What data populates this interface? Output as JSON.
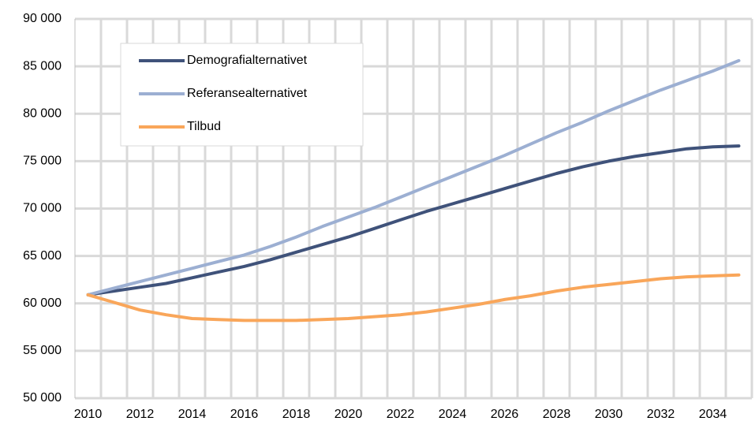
{
  "chart_data": {
    "type": "line",
    "categories": [
      "2010",
      null,
      "2012",
      null,
      "2014",
      null,
      "2016",
      null,
      "2018",
      null,
      "2020",
      null,
      "2022",
      null,
      "2024",
      null,
      "2026",
      null,
      "2028",
      null,
      "2030",
      null,
      "2032",
      null,
      "2034",
      null
    ],
    "series": [
      {
        "name": "Demografialternativet",
        "color": "#3f527a",
        "values": [
          60900,
          61300,
          61700,
          62100,
          62700,
          63300,
          63900,
          64600,
          65400,
          66200,
          67000,
          67900,
          68800,
          69700,
          70500,
          71300,
          72100,
          72900,
          73700,
          74400,
          75000,
          75500,
          75900,
          76300,
          76500,
          76600
        ]
      },
      {
        "name": "Referansealternativet",
        "color": "#9cafd2",
        "values": [
          60900,
          61600,
          62300,
          63000,
          63700,
          64400,
          65100,
          66000,
          67000,
          68100,
          69100,
          70100,
          71200,
          72300,
          73400,
          74500,
          75600,
          76800,
          78000,
          79100,
          80300,
          81400,
          82500,
          83500,
          84500,
          85600
        ]
      },
      {
        "name": "Tilbud",
        "color": "#f9a65a",
        "values": [
          60900,
          60100,
          59300,
          58800,
          58400,
          58300,
          58200,
          58200,
          58200,
          58300,
          58400,
          58600,
          58800,
          59100,
          59500,
          59900,
          60400,
          60800,
          61300,
          61700,
          62000,
          62300,
          62600,
          62800,
          62900,
          63000
        ]
      }
    ],
    "ylim": [
      50000,
      90000
    ],
    "yticks": [
      {
        "value": 50000,
        "label": "50 000"
      },
      {
        "value": 55000,
        "label": "55 000"
      },
      {
        "value": 60000,
        "label": "60 000"
      },
      {
        "value": 65000,
        "label": "65 000"
      },
      {
        "value": 70000,
        "label": "70 000"
      },
      {
        "value": 75000,
        "label": "75 000"
      },
      {
        "value": 80000,
        "label": "80 000"
      },
      {
        "value": 85000,
        "label": "85 000"
      },
      {
        "value": 90000,
        "label": "90 000"
      }
    ],
    "grid": true,
    "legend": "upper left"
  }
}
